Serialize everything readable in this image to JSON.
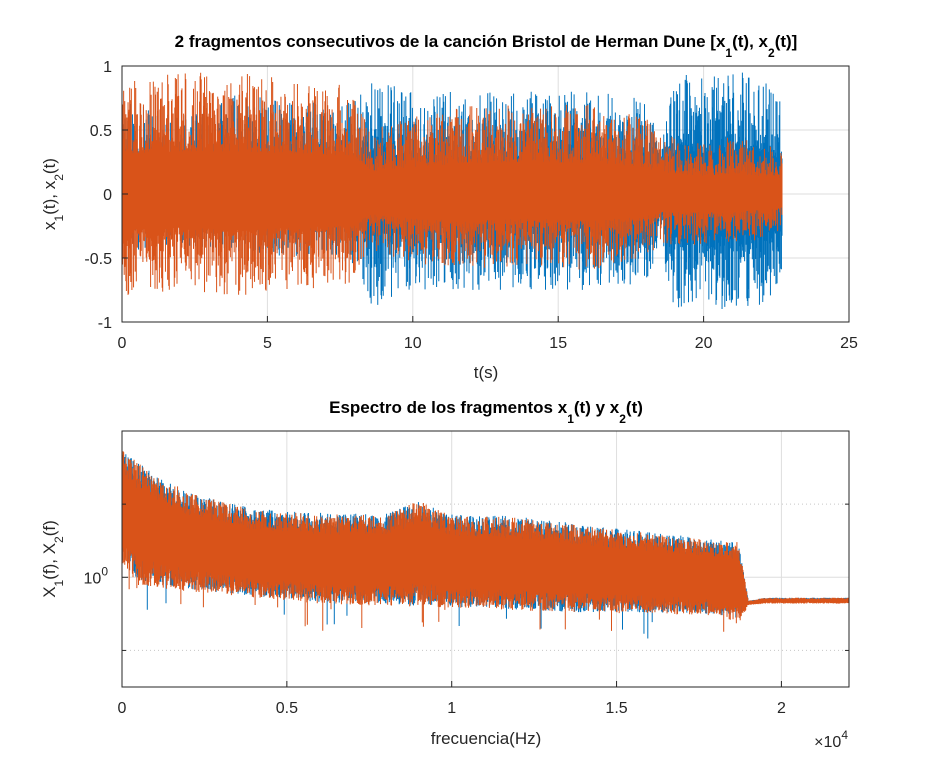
{
  "chart_data": [
    {
      "type": "line",
      "title": {
        "main": "2 fragmentos consecutivos de la canción Bristol de Herman Dune [x",
        "sub1": "1",
        "mid": "(t), x",
        "sub2": "2",
        "end": "(t)]"
      },
      "xlabel": "t(s)",
      "ylabel": {
        "a": "x",
        "sub1": "1",
        "b": "(t), x",
        "sub2": "2",
        "c": "(t)"
      },
      "xlim": [
        0,
        25
      ],
      "ylim": [
        -1,
        1
      ],
      "x_ticks": [
        0,
        5,
        10,
        15,
        20,
        25
      ],
      "y_ticks": [
        -1,
        -0.5,
        0,
        0.5,
        1
      ],
      "x_tick_labels": [
        "0",
        "5",
        "10",
        "15",
        "20",
        "25"
      ],
      "y_tick_labels": [
        "-1",
        "-0.5",
        "0",
        "0.5",
        "1"
      ],
      "grid": true,
      "series": [
        {
          "color": "#0072BD",
          "x_range": [
            0,
            22.7
          ],
          "envelope": {
            "t": [
              0,
              2,
              4,
              6,
              8,
              8.5,
              10,
              12,
              14,
              16,
              18,
              18.5,
              19,
              20,
              21,
              22,
              22.7
            ],
            "upper": [
              0.75,
              0.6,
              0.8,
              0.7,
              0.75,
              0.9,
              0.8,
              0.8,
              0.8,
              0.8,
              0.75,
              0.4,
              0.95,
              0.9,
              0.95,
              0.95,
              0.7
            ],
            "lower": [
              -0.45,
              -0.4,
              -0.45,
              -0.5,
              -0.55,
              -0.9,
              -0.75,
              -0.75,
              -0.75,
              -0.75,
              -0.7,
              -0.4,
              -0.95,
              -0.9,
              -0.9,
              -0.9,
              -0.7
            ]
          }
        },
        {
          "color": "#D95319",
          "x_range": [
            0,
            22.7
          ],
          "envelope": {
            "t": [
              0,
              2,
              4,
              6,
              8,
              8.5,
              10,
              12,
              14,
              16,
              18,
              18.5,
              19,
              20,
              21,
              22,
              22.7
            ],
            "upper": [
              0.9,
              0.95,
              0.95,
              0.9,
              0.85,
              0.5,
              0.6,
              0.7,
              0.7,
              0.7,
              0.6,
              0.45,
              0.45,
              0.4,
              0.45,
              0.4,
              0.35
            ],
            "lower": [
              -0.8,
              -0.75,
              -0.8,
              -0.75,
              -0.7,
              -0.45,
              -0.55,
              -0.6,
              -0.55,
              -0.6,
              -0.5,
              -0.4,
              -0.4,
              -0.4,
              -0.4,
              -0.35,
              -0.3
            ]
          }
        }
      ]
    },
    {
      "type": "line",
      "title": {
        "main": "Espectro de los fragmentos x",
        "sub1": "1",
        "mid": "(t) y x",
        "sub2": "2",
        "end": "(t)"
      },
      "xlabel": "frecuencia(Hz)",
      "ylabel": {
        "a": "X",
        "sub1": "1",
        "b": "(f), X",
        "sub2": "2",
        "c": "(f)"
      },
      "xlim": [
        0,
        22050
      ],
      "ylog": true,
      "ylim_log10": [
        -0.75,
        1.0
      ],
      "x_ticks": [
        0,
        5000,
        10000,
        15000,
        20000
      ],
      "x_tick_labels": [
        "0",
        "0.5",
        "1",
        "1.5",
        "2"
      ],
      "x_multiplier": {
        "base": "×10",
        "exp": "4"
      },
      "y_tick_labels": [
        {
          "value_log10": 0,
          "base": "10",
          "exp": "0"
        }
      ],
      "grid": true,
      "series": [
        {
          "color": "#0072BD",
          "envelope_log10": {
            "f": [
              0,
              500,
              2000,
              4000,
              6000,
              8000,
              9000,
              10000,
              12000,
              14000,
              16000,
              18000,
              18700,
              19000,
              19500,
              22050
            ],
            "upper": [
              0.87,
              0.78,
              0.58,
              0.47,
              0.44,
              0.44,
              0.52,
              0.43,
              0.42,
              0.36,
              0.31,
              0.26,
              0.24,
              -0.16,
              -0.14,
              -0.14
            ],
            "lower": [
              0.12,
              -0.02,
              -0.08,
              -0.13,
              -0.17,
              -0.18,
              -0.2,
              -0.2,
              -0.22,
              -0.24,
              -0.24,
              -0.25,
              -0.28,
              -0.18,
              -0.17,
              -0.17
            ]
          }
        },
        {
          "color": "#D95319",
          "envelope_log10": {
            "f": [
              0,
              500,
              2000,
              4000,
              6000,
              8000,
              9000,
              10000,
              12000,
              14000,
              16000,
              18000,
              18700,
              19000,
              19500,
              22050
            ],
            "upper": [
              0.88,
              0.78,
              0.58,
              0.46,
              0.43,
              0.43,
              0.53,
              0.42,
              0.41,
              0.35,
              0.3,
              0.25,
              0.24,
              -0.16,
              -0.14,
              -0.14
            ],
            "lower": [
              0.1,
              -0.05,
              -0.1,
              -0.14,
              -0.18,
              -0.2,
              -0.2,
              -0.21,
              -0.23,
              -0.24,
              -0.25,
              -0.26,
              -0.32,
              -0.19,
              -0.18,
              -0.18
            ]
          }
        }
      ]
    }
  ]
}
